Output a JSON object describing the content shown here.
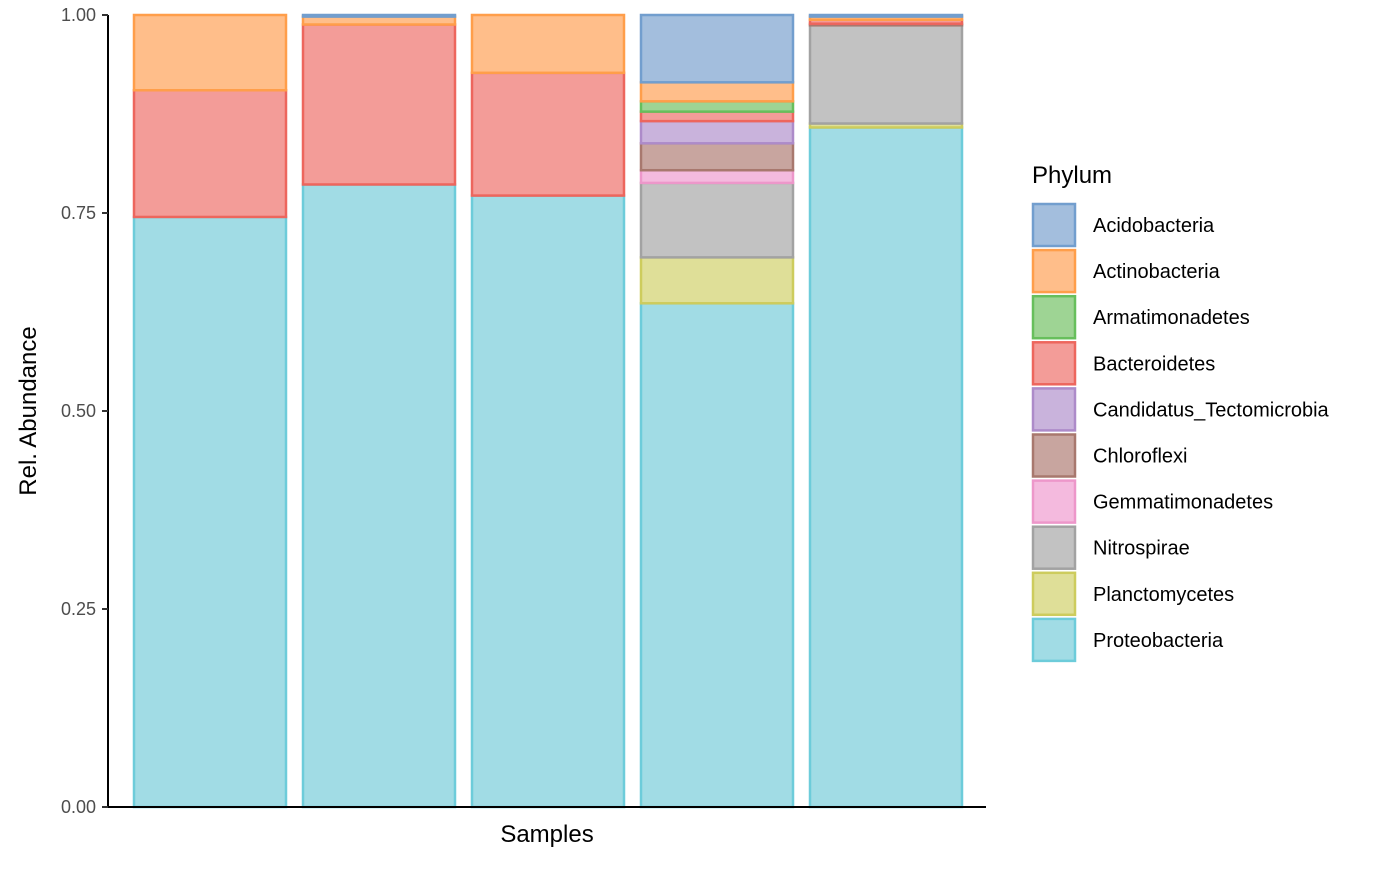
{
  "chart_data": {
    "type": "bar",
    "stacked": true,
    "xlabel": "Samples",
    "ylabel": "Rel. Abundance",
    "ylim": [
      0,
      1
    ],
    "yticks": [
      "0.00",
      "0.25",
      "0.50",
      "0.75",
      "1.00"
    ],
    "ytick_values": [
      0,
      0.25,
      0.5,
      0.75,
      1.0
    ],
    "grid": false,
    "legend": {
      "title": "Phylum",
      "position": "right",
      "entries": [
        "Acidobacteria",
        "Actinobacteria",
        "Armatimonadetes",
        "Bacteroidetes",
        "Candidatus_Tectomicrobia",
        "Chloroflexi",
        "Gemmatimonadetes",
        "Nitrospirae",
        "Planctomycetes",
        "Proteobacteria"
      ]
    },
    "categories": [
      "",
      "",
      "",
      "",
      ""
    ],
    "series": [
      {
        "name": "Acidobacteria",
        "fill": "#A3BEDD",
        "stroke": "#729ECE",
        "values": [
          0,
          0.002,
          0,
          0.085,
          0.002
        ]
      },
      {
        "name": "Actinobacteria",
        "fill": "#FFBE8A",
        "stroke": "#FF9E4A",
        "values": [
          0.095,
          0.01,
          0.073,
          0.024,
          0.004
        ]
      },
      {
        "name": "Armatimonadetes",
        "fill": "#9ED494",
        "stroke": "#67BF5C",
        "values": [
          0,
          0,
          0,
          0.013,
          0
        ]
      },
      {
        "name": "Bacteroidetes",
        "fill": "#F39C98",
        "stroke": "#ED665D",
        "values": [
          0.16,
          0.202,
          0.155,
          0.012,
          0.005
        ]
      },
      {
        "name": "Candidatus_Tectomicrobia",
        "fill": "#C9B3DC",
        "stroke": "#AD8BC9",
        "values": [
          0,
          0,
          0,
          0.028,
          0
        ]
      },
      {
        "name": "Chloroflexi",
        "fill": "#C8A59F",
        "stroke": "#A8786E",
        "values": [
          0,
          0,
          0,
          0.034,
          0.002
        ]
      },
      {
        "name": "Gemmatimonadetes",
        "fill": "#F4BADE",
        "stroke": "#ED97CA",
        "values": [
          0,
          0,
          0,
          0.016,
          0
        ]
      },
      {
        "name": "Nitrospirae",
        "fill": "#C2C2C2",
        "stroke": "#A2A2A2",
        "values": [
          0,
          0,
          0,
          0.094,
          0.124
        ]
      },
      {
        "name": "Planctomycetes",
        "fill": "#DFDF98",
        "stroke": "#CDCC5D",
        "values": [
          0,
          0,
          0,
          0.058,
          0.005
        ]
      },
      {
        "name": "Proteobacteria",
        "fill": "#A1DCE5",
        "stroke": "#6DCCDA",
        "values": [
          0.745,
          0.786,
          0.772,
          0.636,
          0.858
        ]
      }
    ]
  }
}
